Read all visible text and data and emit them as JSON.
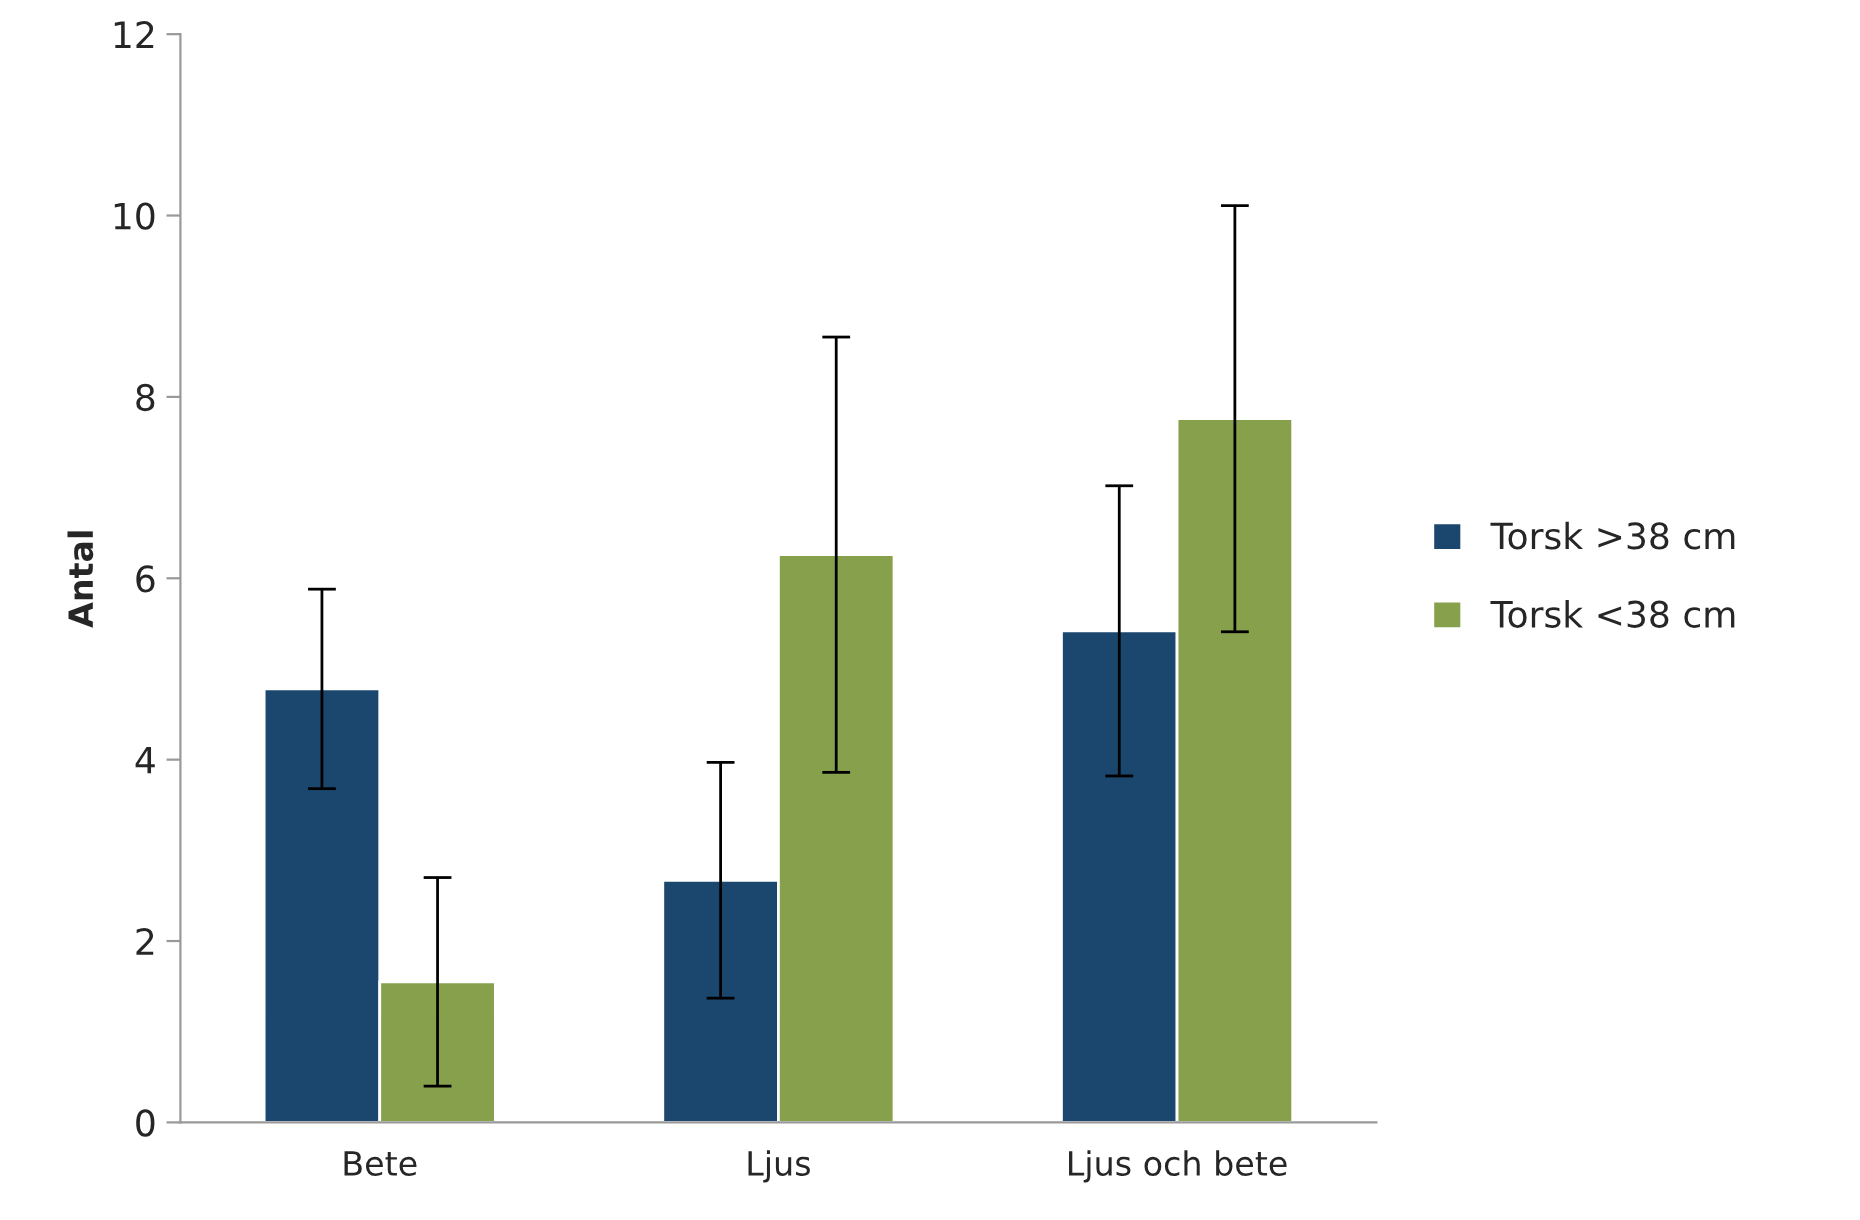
{
  "chart_data": {
    "type": "bar",
    "ylabel": "Antal",
    "categories": [
      "Bete",
      "Ljus",
      "Ljus och bete"
    ],
    "series": [
      {
        "name": "Torsk >38 cm",
        "color": "#1b476e",
        "values": [
          4.78,
          2.67,
          5.42
        ],
        "errors": [
          1.1,
          1.3,
          1.6
        ]
      },
      {
        "name": "Torsk <38 cm",
        "color": "#86a04b",
        "values": [
          1.55,
          6.26,
          7.76
        ],
        "errors": [
          1.15,
          2.4,
          2.35
        ]
      }
    ],
    "ylim": [
      0,
      12
    ],
    "yticks": [
      0,
      2,
      4,
      6,
      8,
      10,
      12
    ],
    "grid": false,
    "legend": "right"
  }
}
